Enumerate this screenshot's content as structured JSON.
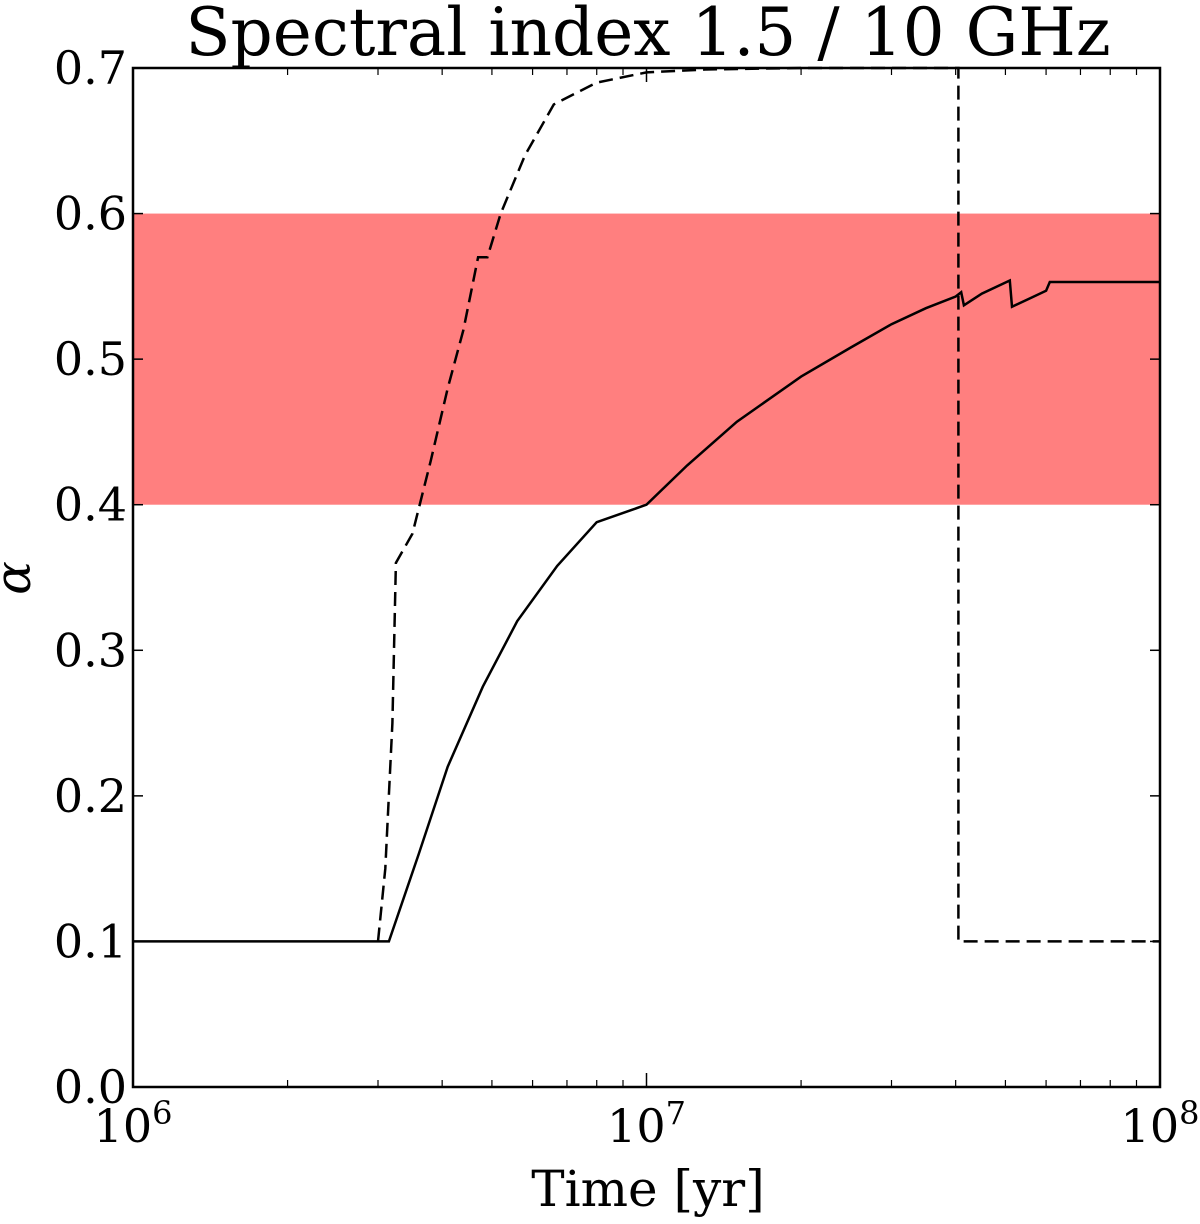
{
  "chart_data": {
    "type": "line",
    "title": "Spectral index 1.5 / 10 GHz",
    "xlabel": "Time [yr]",
    "ylabel": "α",
    "xscale": "log",
    "xlim": [
      1000000,
      100000000
    ],
    "ylim": [
      0.0,
      0.7
    ],
    "grid": false,
    "x_ticks": [
      {
        "value": 1000000,
        "base": "10",
        "exp": "6"
      },
      {
        "value": 10000000,
        "base": "10",
        "exp": "7"
      },
      {
        "value": 100000000,
        "base": "10",
        "exp": "8"
      }
    ],
    "y_ticks": [
      {
        "value": 0.0,
        "label": "0.0"
      },
      {
        "value": 0.1,
        "label": "0.1"
      },
      {
        "value": 0.2,
        "label": "0.2"
      },
      {
        "value": 0.3,
        "label": "0.3"
      },
      {
        "value": 0.4,
        "label": "0.4"
      },
      {
        "value": 0.5,
        "label": "0.5"
      },
      {
        "value": 0.6,
        "label": "0.6"
      },
      {
        "value": 0.7,
        "label": "0.7"
      }
    ],
    "band": {
      "y_min": 0.4,
      "y_max": 0.6,
      "color": "#ff7f7f"
    },
    "series": [
      {
        "name": "solid",
        "style": "solid",
        "color": "#000000",
        "points": [
          [
            1000000,
            0.1
          ],
          [
            3150000,
            0.1
          ],
          [
            3600000,
            0.16
          ],
          [
            4100000,
            0.22
          ],
          [
            4800000,
            0.275
          ],
          [
            5600000,
            0.32
          ],
          [
            6700000,
            0.358
          ],
          [
            8000000,
            0.388
          ],
          [
            10000000,
            0.4
          ],
          [
            12000000,
            0.427
          ],
          [
            15000000,
            0.457
          ],
          [
            20000000,
            0.488
          ],
          [
            25000000,
            0.508
          ],
          [
            30000000,
            0.524
          ],
          [
            35000000,
            0.535
          ],
          [
            40000000,
            0.543
          ],
          [
            41000000,
            0.546
          ],
          [
            41500000,
            0.537
          ],
          [
            45000000,
            0.545
          ],
          [
            51000000,
            0.554
          ],
          [
            51500000,
            0.536
          ],
          [
            56000000,
            0.542
          ],
          [
            60000000,
            0.547
          ],
          [
            61000000,
            0.553
          ],
          [
            100000000,
            0.553
          ]
        ]
      },
      {
        "name": "dashed",
        "style": "dashed",
        "color": "#000000",
        "points": [
          [
            3000000,
            0.1
          ],
          [
            3100000,
            0.15
          ],
          [
            3200000,
            0.25
          ],
          [
            3250000,
            0.36
          ],
          [
            3500000,
            0.38
          ],
          [
            3800000,
            0.43
          ],
          [
            4100000,
            0.48
          ],
          [
            4400000,
            0.52
          ],
          [
            4700000,
            0.57
          ],
          [
            4900000,
            0.57
          ],
          [
            5200000,
            0.6
          ],
          [
            5800000,
            0.64
          ],
          [
            6600000,
            0.675
          ],
          [
            8000000,
            0.69
          ],
          [
            10000000,
            0.697
          ],
          [
            13000000,
            0.699
          ],
          [
            20000000,
            0.7
          ],
          [
            40000000,
            0.7
          ],
          [
            40500000,
            0.7
          ],
          [
            40500000,
            0.1
          ],
          [
            100000000,
            0.1
          ]
        ]
      }
    ]
  }
}
